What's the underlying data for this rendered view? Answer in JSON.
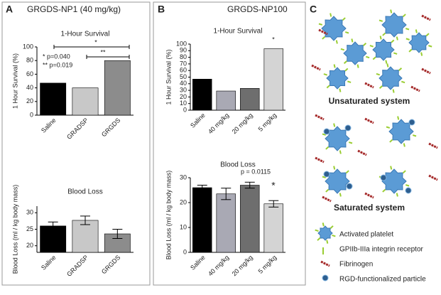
{
  "panels": {
    "a_letter": "A",
    "a_title": "GRGDS-NP1 (40 mg/kg)",
    "b_letter": "B",
    "b_title": "GRGDS-NP100",
    "c_letter": "C"
  },
  "chart_data": [
    {
      "type": "bar",
      "title": "1-Hour Survival",
      "y_label": "1 Hour Survival (%)",
      "categories": [
        "Saline",
        "GRADSP",
        "GRGDS"
      ],
      "values": [
        47,
        40,
        80
      ],
      "colors": [
        "#000000",
        "#c8c8c8",
        "#8c8c8c"
      ],
      "ylim": [
        0,
        100
      ],
      "yticks": [
        0,
        20,
        40,
        60,
        80,
        100
      ],
      "annotations": [
        "*",
        "**",
        "* p=0.040",
        "** p=0.019"
      ]
    },
    {
      "type": "bar",
      "title": "Blood Loss",
      "y_label": "Blood Loss (ml / kg body mass)",
      "categories": [
        "Saline",
        "GRADSP",
        "GRGDS"
      ],
      "values": [
        26,
        27.7,
        23.6
      ],
      "errors": [
        1.2,
        1.3,
        1.4
      ],
      "colors": [
        "#000000",
        "#c8c8c8",
        "#8c8c8c"
      ],
      "ylim": [
        18,
        32
      ],
      "yticks": [
        20,
        25,
        30
      ]
    },
    {
      "type": "bar",
      "title": "1-Hour Survival",
      "y_label": "1 Hour Survival (%)",
      "categories": [
        "Saline",
        "40 mg/kg",
        "20 mg/kg",
        "5 mg/kg"
      ],
      "values": [
        47,
        29,
        33,
        93
      ],
      "colors": [
        "#000000",
        "#a9a9b4",
        "#6e6e6e",
        "#d4d4d4"
      ],
      "ylim": [
        0,
        100
      ],
      "yticks": [
        0,
        10,
        20,
        30,
        40,
        50,
        60,
        70,
        80,
        90,
        100
      ],
      "annotations": [
        "*"
      ]
    },
    {
      "type": "bar",
      "title": "Blood Loss",
      "y_label": "Blood Loss (ml / kg body mass)",
      "categories": [
        "Saline",
        "40 mg/kg",
        "20 mg/kg",
        "5 mg/kg"
      ],
      "values": [
        26,
        23.5,
        27,
        19.5
      ],
      "errors": [
        1,
        2.3,
        1.2,
        1.3
      ],
      "colors": [
        "#000000",
        "#a9a9b4",
        "#6e6e6e",
        "#d4d4d4"
      ],
      "ylim": [
        0,
        30
      ],
      "yticks": [
        0,
        10,
        20,
        30
      ],
      "annotations": [
        "p = 0.0115",
        "*"
      ]
    }
  ],
  "diagram": {
    "unsaturated": "Unsaturated system",
    "saturated": "Saturated system",
    "legend": [
      "Activated platelet",
      "GPIIb-IIIa integrin receptor",
      "Fibrinogen",
      "RGD-functionalized particle"
    ]
  }
}
